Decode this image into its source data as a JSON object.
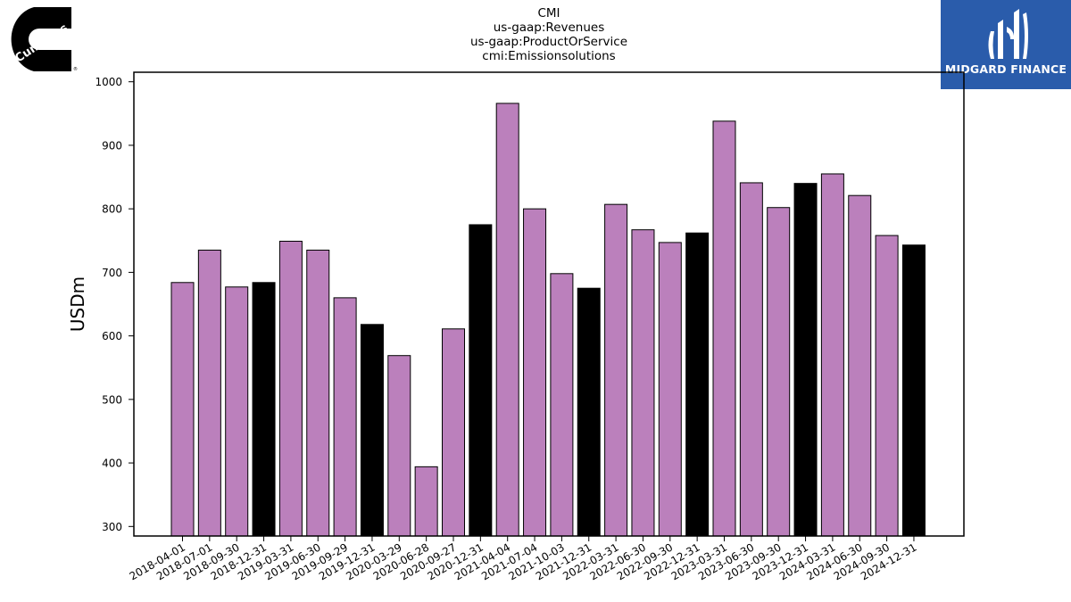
{
  "header": {
    "title_lines": [
      "CMI",
      "us-gaap:Revenues",
      "us-gaap:ProductOrService",
      "cmi:Emissionsolutions"
    ]
  },
  "logos": {
    "left_text": "Cummins",
    "right_text": "MIDGARD FINANCE"
  },
  "colors": {
    "bar_regular": "#bb80bc",
    "bar_year_end": "#000000",
    "logo_right_bg": "#2a5cab"
  },
  "chart_data": {
    "type": "bar",
    "title": "CMI\nus-gaap:Revenues\nus-gaap:ProductOrService\ncmi:Emissionsolutions",
    "xlabel": "",
    "ylabel": "USDm",
    "ylim": [
      285,
      1015
    ],
    "yticks": [
      300,
      400,
      500,
      600,
      700,
      800,
      900,
      1000
    ],
    "grid": false,
    "categories": [
      "2018-04-01",
      "2018-07-01",
      "2018-09-30",
      "2018-12-31",
      "2019-03-31",
      "2019-06-30",
      "2019-09-29",
      "2019-12-31",
      "2020-03-29",
      "2020-06-28",
      "2020-09-27",
      "2020-12-31",
      "2021-04-04",
      "2021-07-04",
      "2021-10-03",
      "2021-12-31",
      "2022-03-31",
      "2022-06-30",
      "2022-09-30",
      "2022-12-31",
      "2023-03-31",
      "2023-06-30",
      "2023-09-30",
      "2023-12-31",
      "2024-03-31",
      "2024-06-30",
      "2024-09-30",
      "2024-12-31"
    ],
    "values": [
      684,
      735,
      677,
      684,
      749,
      735,
      660,
      618,
      569,
      394,
      611,
      775,
      966,
      800,
      698,
      675,
      807,
      767,
      747,
      762,
      938,
      841,
      802,
      840,
      855,
      821,
      758,
      743
    ],
    "year_end": [
      false,
      false,
      false,
      true,
      false,
      false,
      false,
      true,
      false,
      false,
      false,
      true,
      false,
      false,
      false,
      true,
      false,
      false,
      false,
      true,
      false,
      false,
      false,
      true,
      false,
      false,
      false,
      true
    ]
  }
}
